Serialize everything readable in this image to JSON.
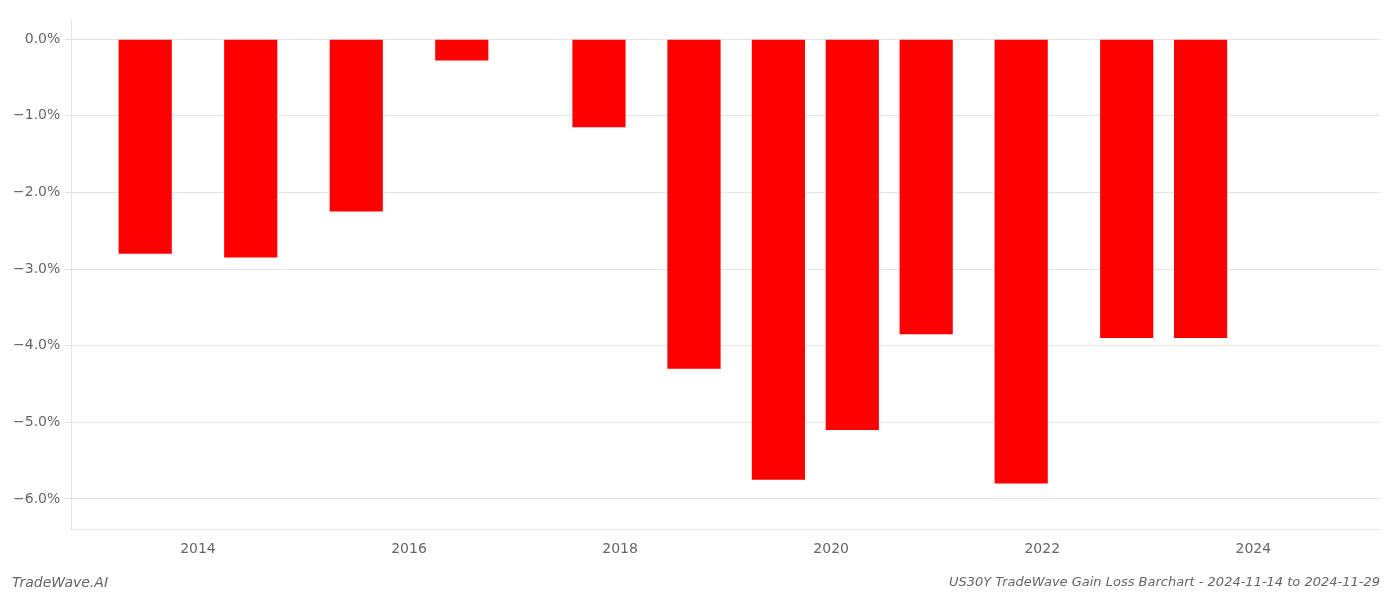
{
  "chart_data": {
    "type": "bar",
    "title": "US30Y TradeWave Gain Loss Barchart - 2024-11-14 to 2024-11-29",
    "annotations": [
      "TradeWave.AI"
    ],
    "x": [
      2013.5,
      2014.5,
      2015.5,
      2016.5,
      2017.8,
      2018.7,
      2019.5,
      2020.2,
      2020.9,
      2021.8,
      2022.8,
      2023.5
    ],
    "values": [
      -2.8,
      -2.85,
      -2.25,
      -0.28,
      -1.15,
      -4.3,
      -5.75,
      -5.1,
      -3.85,
      -5.8,
      -3.9,
      -3.9
    ],
    "color": "#ff0000",
    "xlim": [
      2012.8,
      2025.2
    ],
    "xticks": [
      2014,
      2016,
      2018,
      2020,
      2022,
      2024
    ],
    "ylim": [
      -6.4,
      0.25
    ],
    "yticks": [
      {
        "value": 0.0,
        "label": "0.0%"
      },
      {
        "value": -1.0,
        "label": "−1.0%"
      },
      {
        "value": -2.0,
        "label": "−2.0%"
      },
      {
        "value": -3.0,
        "label": "−3.0%"
      },
      {
        "value": -4.0,
        "label": "−4.0%"
      },
      {
        "value": -5.0,
        "label": "−5.0%"
      },
      {
        "value": -6.0,
        "label": "−6.0%"
      }
    ],
    "grid": true
  }
}
